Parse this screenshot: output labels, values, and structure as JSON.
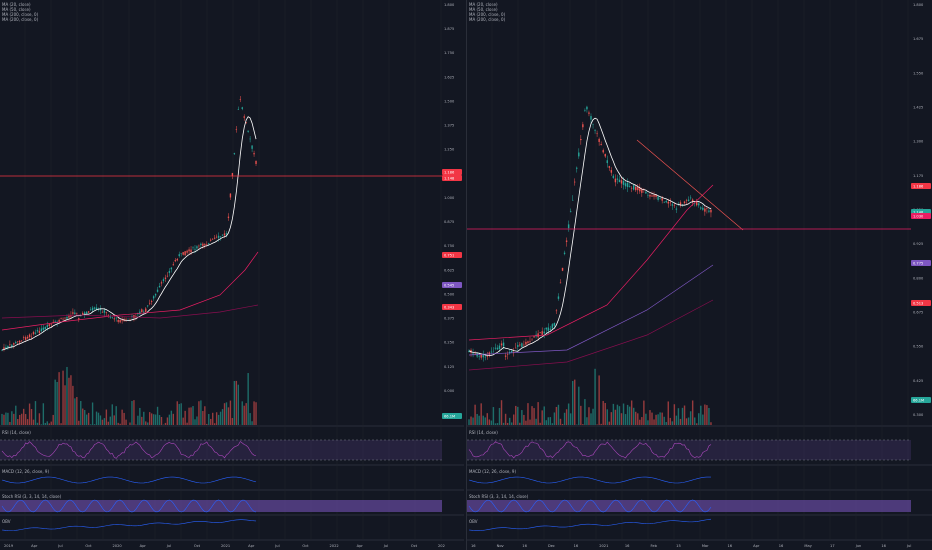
{
  "left": {
    "legend": [
      "MA (20, close)",
      "MA (50, close)",
      "MA (200, close, 0)",
      "MA (200, close, 0)"
    ],
    "price_axis": [
      "1.800",
      "1.875",
      "1.750",
      "1.625",
      "1.500",
      "1.375",
      "1.250",
      "1.125",
      "1.000",
      "0.875",
      "0.750",
      "0.625",
      "0.500",
      "0.375",
      "0.250",
      "0.125",
      "0.000",
      "-0.125"
    ],
    "price_tags": [
      {
        "label": "1.186",
        "color": "#f23645"
      },
      {
        "label": "1.148",
        "color": "#f23645"
      },
      {
        "label": "0.751",
        "color": "#f23645"
      },
      {
        "label": "0.545",
        "color": "#7e57c2"
      },
      {
        "label": "0.343",
        "color": "#f23645"
      },
      {
        "label": "66.1M",
        "color": "#26a69a"
      }
    ],
    "panes": [
      "RSI (14, close)",
      "MACD (12, 26, close, 9)",
      "Stoch RSI (3, 3, 14, 14, close)",
      "OBV"
    ],
    "time_axis": [
      "2019",
      "Apr",
      "Jul",
      "Oct",
      "2020",
      "Apr",
      "Jul",
      "Oct",
      "2021",
      "Apr",
      "Jul",
      "Oct",
      "2022",
      "Apr",
      "Jul",
      "Oct",
      "202"
    ]
  },
  "right": {
    "legend": [
      "MA (20, close)",
      "MA (50, close)",
      "MA (200, close, 0)",
      "MA (200, close, 0)"
    ],
    "price_axis": [
      "1.800",
      "1.675",
      "1.550",
      "1.425",
      "1.300",
      "1.175",
      "1.050",
      "0.925",
      "0.800",
      "0.675",
      "0.550",
      "0.425",
      "0.300"
    ],
    "price_tags": [
      {
        "label": "1.186",
        "color": "#f23645"
      },
      {
        "label": "1.148",
        "color": "#26a69a"
      },
      {
        "label": "1.030",
        "color": "#e91e63"
      },
      {
        "label": "0.775",
        "color": "#7e57c2"
      },
      {
        "label": "0.513",
        "color": "#f23645"
      },
      {
        "label": "66.1M",
        "color": "#26a69a"
      }
    ],
    "panes": [
      "RSI (14, close)",
      "MACD (12, 26, close, 9)",
      "Stoch RSI (3, 3, 14, 14, close)",
      "OBV"
    ],
    "time_axis": [
      "16",
      "Nov",
      "16",
      "Dec",
      "16",
      "2021",
      "16",
      "Feb",
      "15",
      "Mar",
      "16",
      "Apr",
      "16",
      "May",
      "17",
      "Jun",
      "16",
      "Jul"
    ]
  }
}
